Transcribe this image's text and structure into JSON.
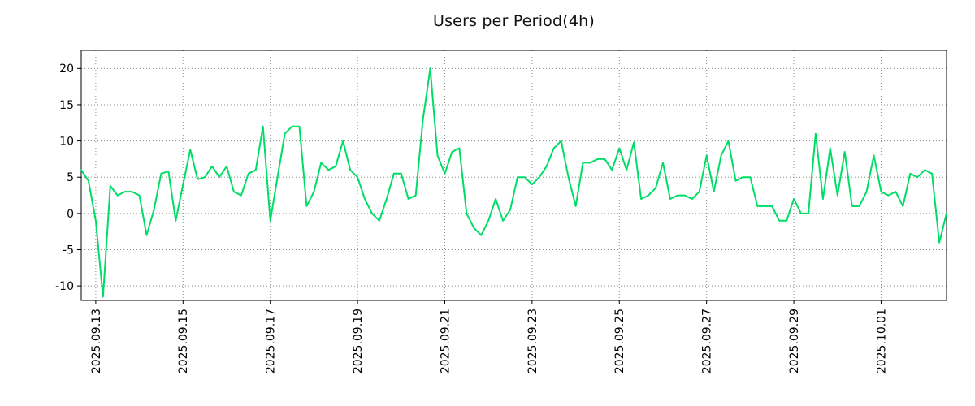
{
  "title": "Users per Period(4h)",
  "colors": {
    "line": "#00dd66",
    "grid": "#8a8a8a",
    "axis": "#000000",
    "text": "#000000",
    "background": "#ffffff"
  },
  "chart_data": {
    "type": "line",
    "title": "Users per Period(4h)",
    "xlabel": "",
    "ylabel": "",
    "period": "4h",
    "grid": true,
    "grid_style": "dotted",
    "legend": false,
    "ylim": [
      -12,
      22.5
    ],
    "y_ticks": [
      -10,
      -5,
      0,
      5,
      10,
      15,
      20
    ],
    "x_tick_labels": [
      "2025.09.13",
      "2025.09.15",
      "2025.09.17",
      "2025.09.19",
      "2025.09.21",
      "2025.09.23",
      "2025.09.25",
      "2025.09.27",
      "2025.09.29",
      "2025.10.01"
    ],
    "x_tick_indices": [
      2,
      14,
      26,
      38,
      50,
      62,
      74,
      86,
      98,
      110
    ],
    "values": [
      6,
      4.5,
      -1,
      -11.5,
      3.8,
      2.5,
      3,
      3,
      2.5,
      -3,
      0.5,
      5.5,
      5.8,
      -1,
      4,
      8.8,
      4.7,
      5,
      6.5,
      5,
      6.5,
      3,
      2.5,
      5.5,
      6,
      12,
      -1,
      5,
      11,
      12,
      12,
      1,
      3,
      7,
      6,
      6.5,
      10,
      6,
      5,
      2,
      0,
      -1,
      2,
      5.5,
      5.5,
      2,
      2.5,
      13,
      20,
      8,
      5.5,
      8.5,
      9,
      0,
      -2,
      -3,
      -1,
      2,
      -1,
      0.5,
      5,
      5,
      4,
      5,
      6.5,
      9,
      10,
      5,
      1,
      7,
      7,
      7.5,
      7.5,
      6,
      9,
      6,
      9.8,
      2,
      2.5,
      3.5,
      7,
      2,
      2.5,
      2.5,
      2,
      3,
      8,
      3,
      8,
      10,
      4.5,
      5,
      5,
      1,
      1,
      1,
      -1,
      -1,
      2,
      0,
      0,
      11,
      2,
      9,
      2.5,
      8.5,
      1,
      1,
      3,
      8,
      3,
      2.5,
      3,
      1,
      5.5,
      5,
      6,
      5.5,
      -4,
      0
    ]
  }
}
